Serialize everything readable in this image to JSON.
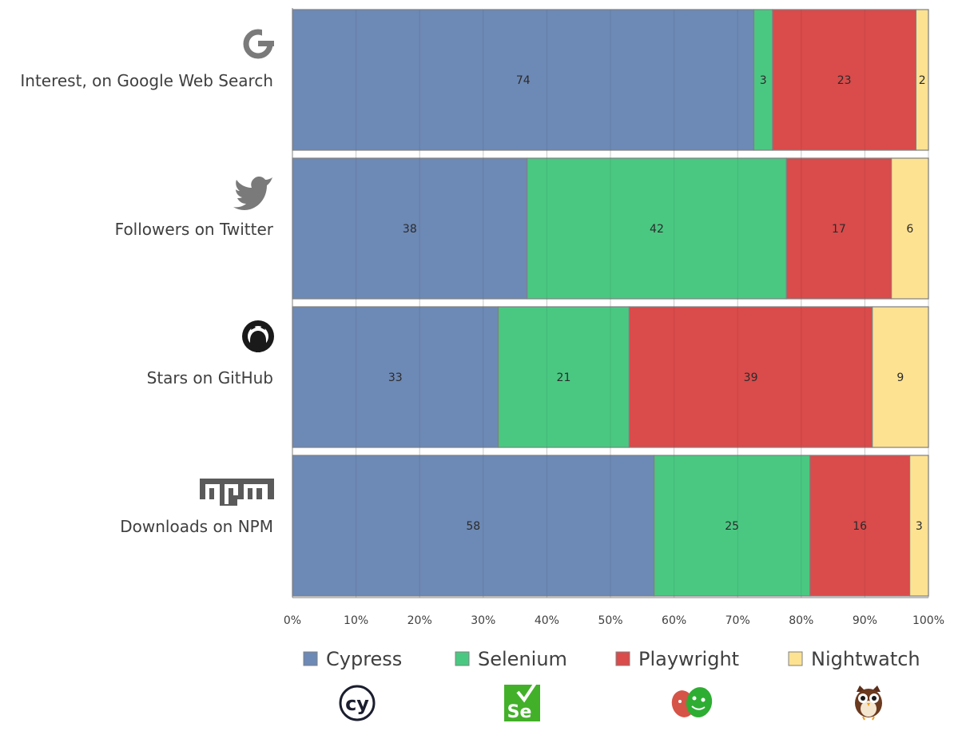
{
  "chart_data": {
    "type": "bar",
    "orientation": "horizontal",
    "stacked": "percent",
    "categories": [
      "Interest, on Google Web Search",
      "Followers on Twitter",
      "Stars on GitHub",
      "Downloads on NPM"
    ],
    "category_icons": [
      "google-icon",
      "twitter-icon",
      "github-icon",
      "npm-icon"
    ],
    "series": [
      {
        "name": "Cypress",
        "color": "#6d89b5",
        "icon": "cypress-icon",
        "values": [
          74,
          38,
          33,
          58
        ]
      },
      {
        "name": "Selenium",
        "color": "#4ac882",
        "icon": "selenium-icon",
        "values": [
          3,
          42,
          21,
          25
        ]
      },
      {
        "name": "Playwright",
        "color": "#da4b4b",
        "icon": "playwright-icon",
        "values": [
          23,
          17,
          39,
          16
        ]
      },
      {
        "name": "Nightwatch",
        "color": "#fde292",
        "icon": "nightwatch-icon",
        "values": [
          2,
          6,
          9,
          3
        ]
      }
    ],
    "x_ticks": [
      "0%",
      "10%",
      "20%",
      "30%",
      "40%",
      "50%",
      "60%",
      "70%",
      "80%",
      "90%",
      "100%"
    ],
    "xlim": [
      0,
      100
    ],
    "grid": true,
    "legend_position": "bottom"
  }
}
